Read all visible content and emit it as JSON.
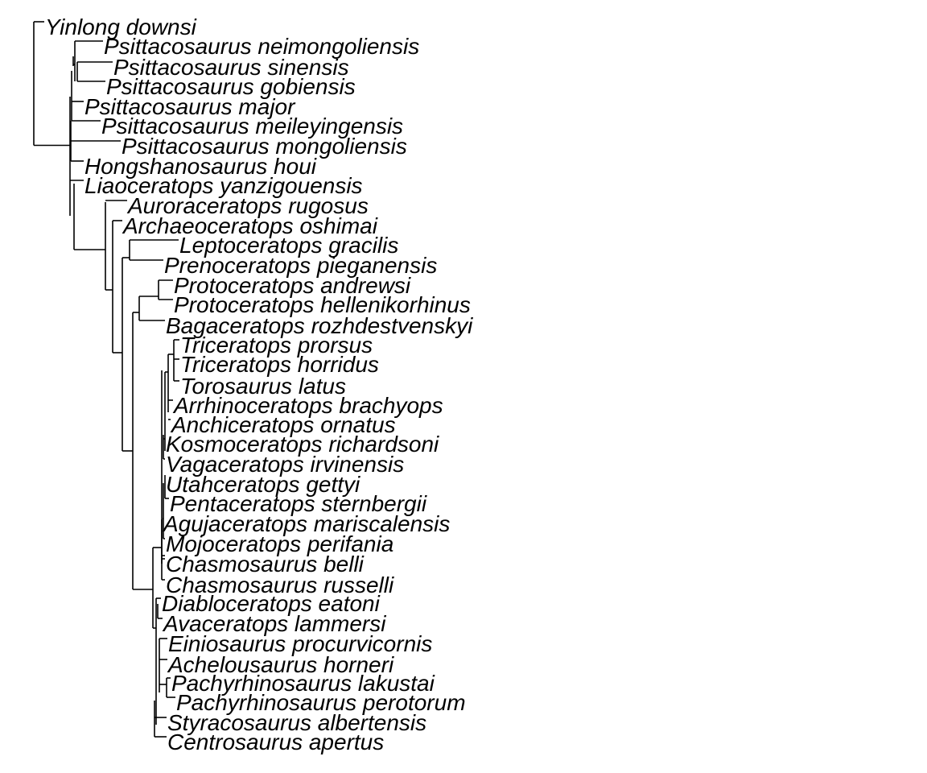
{
  "tree": {
    "taxa": [
      "Yinlong downsi",
      "Psittacosaurus neimongoliensis",
      "Psittacosaurus sinensis",
      "Psittacosaurus gobiensis",
      "Psittacosaurus major",
      "Psittacosaurus meileyingensis",
      "Psittacosaurus mongoliensis",
      "Hongshanosaurus houi",
      "Liaoceratops yanzigouensis",
      "Auroraceratops rugosus",
      "Archaeoceratops oshimai",
      "Leptoceratops gracilis",
      "Prenoceratops pieganensis",
      "Protoceratops andrewsi",
      "Protoceratops hellenikorhinus",
      "Bagaceratops rozhdestvenskyi",
      "Triceratops prorsus",
      "Triceratops horridus",
      "Torosaurus latus",
      "Arrhinoceratops brachyops",
      "Anchiceratops ornatus",
      "Kosmoceratops richardsoni",
      "Vagaceratops irvinensis",
      "Utahceratops gettyi",
      "Pentaceratops sternbergii",
      "Agujaceratops mariscalensis",
      "Mojoceratops perifania",
      "Chasmosaurus belli",
      "Chasmosaurus russelli",
      "Diabloceratops eatoni",
      "Avaceratops lammersi",
      "Einiosaurus procurvicornis",
      "Achelousaurus horneri",
      "Pachyrhinosaurus lakustai",
      "Pachyrhinosaurus perotorum",
      "Styracosaurus albertensis",
      "Centrosaurus apertus"
    ]
  }
}
